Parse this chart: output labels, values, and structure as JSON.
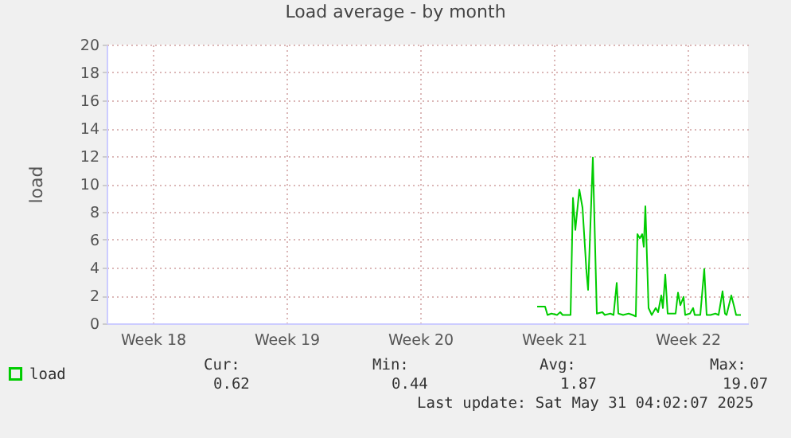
{
  "chart_data": {
    "type": "line",
    "title": "Load average - by month",
    "ylabel": "load",
    "x": [
      "2025-05-20T13:00",
      "2025-05-20T23:00",
      "2025-05-21T02:00",
      "2025-05-21T07:00",
      "2025-05-21T14:00",
      "2025-05-21T18:00",
      "2025-05-21T21:00",
      "2025-05-22T07:00",
      "2025-05-22T10:00",
      "2025-05-22T13:00",
      "2025-05-22T18:00",
      "2025-05-22T22:00",
      "2025-05-23T03:00",
      "2025-05-23T05:00",
      "2025-05-23T11:00",
      "2025-05-23T16:00",
      "2025-05-23T23:00",
      "2025-05-24T02:00",
      "2025-05-24T09:00",
      "2025-05-24T13:00",
      "2025-05-24T17:00",
      "2025-05-24T19:00",
      "2025-05-25T01:00",
      "2025-05-25T08:00",
      "2025-05-25T13:00",
      "2025-05-25T17:00",
      "2025-05-25T19:00",
      "2025-05-25T22:00",
      "2025-05-26T01:00",
      "2025-05-26T03:00",
      "2025-05-26T05:00",
      "2025-05-26T09:00",
      "2025-05-26T13:00",
      "2025-05-26T18:00",
      "2025-05-26T21:00",
      "2025-05-27T01:00",
      "2025-05-27T03:00",
      "2025-05-27T06:00",
      "2025-05-27T09:00",
      "2025-05-27T14:00",
      "2025-05-27T19:00",
      "2025-05-27T22:00",
      "2025-05-28T01:00",
      "2025-05-28T05:00",
      "2025-05-28T07:00",
      "2025-05-28T13:00",
      "2025-05-28T17:00",
      "2025-05-28T19:00",
      "2025-05-29T02:00",
      "2025-05-29T07:00",
      "2025-05-29T10:00",
      "2025-05-29T15:00",
      "2025-05-29T21:00",
      "2025-05-30T01:00",
      "2025-05-30T06:00",
      "2025-05-30T09:00",
      "2025-05-30T11:00",
      "2025-05-30T17:00",
      "2025-05-30T21:00",
      "2025-05-30T23:00",
      "2025-05-31T05:00"
    ],
    "series": [
      {
        "name": "load",
        "color": "#00cc00",
        "values": [
          1.2,
          1.2,
          0.6,
          0.7,
          0.6,
          0.8,
          0.6,
          0.6,
          9.0,
          6.7,
          9.6,
          8.3,
          3.7,
          2.4,
          11.9,
          0.7,
          0.8,
          0.6,
          0.7,
          0.6,
          2.9,
          0.7,
          0.6,
          0.7,
          0.6,
          0.5,
          6.4,
          6.1,
          6.4,
          5.5,
          8.4,
          1.1,
          0.6,
          1.1,
          0.8,
          2.0,
          1.1,
          3.5,
          0.7,
          0.7,
          0.7,
          2.2,
          1.3,
          1.9,
          0.6,
          0.7,
          1.1,
          0.6,
          0.6,
          3.9,
          0.6,
          0.6,
          0.7,
          0.6,
          2.3,
          0.7,
          0.6,
          2.0,
          1.1,
          0.6,
          0.6
        ]
      }
    ],
    "xlim": [
      "2025-04-28T00:00",
      "2025-05-31T14:00"
    ],
    "xticks": [
      {
        "value": "2025-04-30T10:00",
        "label": "Week 18"
      },
      {
        "value": "2025-05-07T10:00",
        "label": "Week 19"
      },
      {
        "value": "2025-05-14T10:00",
        "label": "Week 20"
      },
      {
        "value": "2025-05-21T10:00",
        "label": "Week 21"
      },
      {
        "value": "2025-05-28T10:00",
        "label": "Week 22"
      }
    ],
    "ylim": [
      0,
      20
    ],
    "yticks": [
      0,
      2,
      4,
      6,
      8,
      10,
      12,
      14,
      16,
      18,
      20
    ],
    "grid": true,
    "legend": "bottom left",
    "marker": "none",
    "line_style": "solid",
    "annotations": [
      "Cur:",
      "0.62",
      "Min:",
      "0.44",
      "Avg:",
      "1.87",
      "Max:",
      "19.07",
      "Last update: Sat May 31 04:02:07 2025"
    ]
  }
}
